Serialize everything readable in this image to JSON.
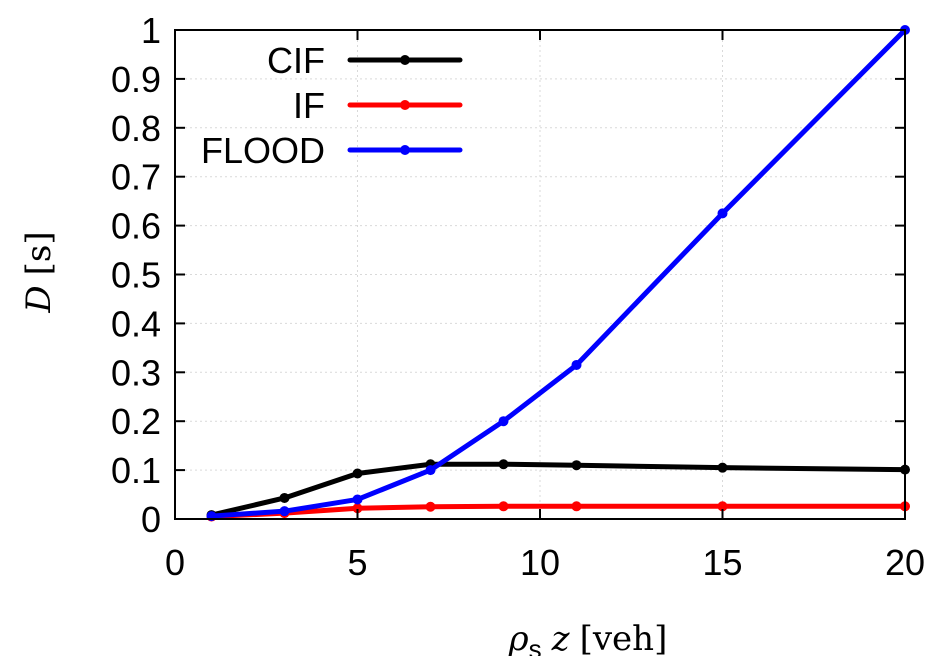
{
  "chart_data": {
    "type": "line",
    "xlabel": {
      "rho": "ρ",
      "sub": "s",
      "z": "z",
      "unit": "[veh]"
    },
    "ylabel": {
      "sym": "D",
      "unit": "[s]"
    },
    "xlim": [
      0,
      20
    ],
    "ylim": [
      0,
      1
    ],
    "xticks": [
      0,
      5,
      10,
      15,
      20
    ],
    "xtick_labels": [
      "0",
      "5",
      "10",
      "15",
      "20"
    ],
    "yticks": [
      0,
      0.1,
      0.2,
      0.3,
      0.4,
      0.5,
      0.6,
      0.7,
      0.8,
      0.9,
      1
    ],
    "ytick_labels": [
      "0",
      "0.1",
      "0.2",
      "0.3",
      "0.4",
      "0.5",
      "0.6",
      "0.7",
      "0.8",
      "0.9",
      "1"
    ],
    "grid": true,
    "legend_position": "top-left",
    "x": [
      1,
      3,
      5,
      7,
      9,
      11,
      15,
      20
    ],
    "series": [
      {
        "name": "CIF",
        "color": "#000000",
        "values": [
          0.008,
          0.043,
          0.093,
          0.112,
          0.112,
          0.11,
          0.105,
          0.101
        ]
      },
      {
        "name": "IF",
        "color": "#ff0000",
        "values": [
          0.005,
          0.012,
          0.022,
          0.025,
          0.026,
          0.026,
          0.026,
          0.026
        ]
      },
      {
        "name": "FLOOD",
        "color": "#0000ff",
        "values": [
          0.006,
          0.016,
          0.04,
          0.1,
          0.2,
          0.315,
          0.625,
          1.0
        ]
      }
    ]
  }
}
